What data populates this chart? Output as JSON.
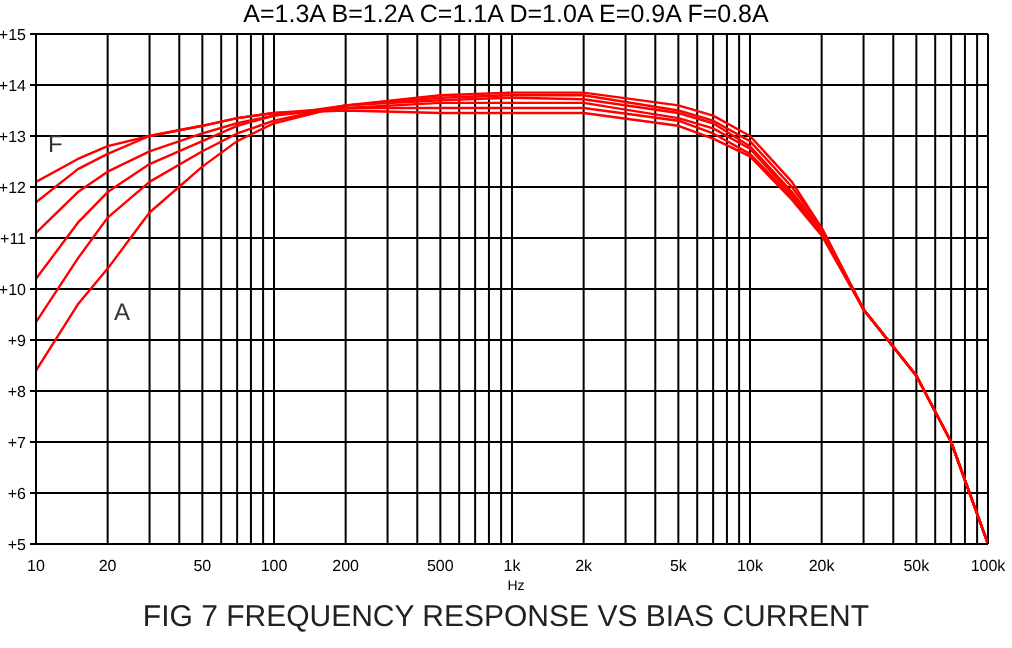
{
  "chart_data": {
    "type": "line",
    "title": "FIG 7  FREQUENCY RESPONSE VS BIAS CURRENT",
    "subtitle": "A=1.3A  B=1.2A  C=1.1A  D=1.0A  E=0.9A  F=0.8A",
    "xlabel": "Hz",
    "log": "x",
    "grid": true,
    "x": [
      10,
      15,
      20,
      30,
      50,
      70,
      100,
      200,
      500,
      1000,
      2000,
      5000,
      7000,
      10000,
      15000,
      20000,
      30000,
      50000,
      70000,
      100000
    ],
    "series": [
      {
        "color": "#ff0000",
        "values": [
          8.4,
          9.7,
          10.4,
          11.5,
          12.4,
          12.9,
          13.25,
          13.6,
          13.8,
          13.85,
          13.85,
          13.6,
          13.4,
          13.0,
          12.1,
          11.2,
          9.6,
          8.3,
          7.0,
          5.0
        ]
      },
      {
        "color": "#ff0000",
        "values": [
          9.35,
          10.6,
          11.4,
          12.1,
          12.7,
          13.05,
          13.3,
          13.6,
          13.75,
          13.8,
          13.8,
          13.5,
          13.3,
          12.9,
          12.0,
          11.2,
          9.6,
          8.3,
          7.0,
          5.0
        ]
      },
      {
        "color": "#ff0000",
        "values": [
          10.2,
          11.3,
          11.9,
          12.45,
          12.9,
          13.2,
          13.4,
          13.6,
          13.7,
          13.75,
          13.72,
          13.45,
          13.25,
          12.8,
          11.9,
          11.15,
          9.6,
          8.3,
          7.0,
          5.0
        ]
      },
      {
        "color": "#ff0000",
        "values": [
          11.1,
          11.9,
          12.3,
          12.7,
          13.05,
          13.25,
          13.4,
          13.55,
          13.65,
          13.65,
          13.65,
          13.35,
          13.15,
          12.75,
          11.85,
          11.1,
          9.6,
          8.3,
          7.0,
          5.0
        ]
      },
      {
        "color": "#ff0000",
        "values": [
          11.7,
          12.35,
          12.65,
          13.0,
          13.2,
          13.35,
          13.45,
          13.55,
          13.55,
          13.55,
          13.55,
          13.3,
          13.05,
          12.65,
          11.8,
          11.1,
          9.6,
          8.3,
          7.0,
          5.0
        ]
      },
      {
        "color": "#ff0000",
        "values": [
          12.1,
          12.55,
          12.8,
          13.0,
          13.2,
          13.35,
          13.45,
          13.5,
          13.45,
          13.45,
          13.45,
          13.2,
          12.95,
          12.6,
          11.75,
          11.05,
          9.6,
          8.3,
          7.0,
          5.0
        ]
      }
    ],
    "annotations": [
      "F",
      "A"
    ],
    "xlim": [
      10,
      100000
    ],
    "xticks": [
      10,
      20,
      {
        "value": 30,
        "label": null
      },
      {
        "value": 40,
        "label": null
      },
      50,
      {
        "value": 60,
        "label": null
      },
      {
        "value": 70,
        "label": null
      },
      {
        "value": 80,
        "label": null
      },
      {
        "value": 90,
        "label": null
      },
      100,
      200,
      {
        "value": 300,
        "label": null
      },
      {
        "value": 400,
        "label": null
      },
      500,
      {
        "value": 600,
        "label": null
      },
      {
        "value": 700,
        "label": null
      },
      {
        "value": 800,
        "label": null
      },
      {
        "value": 900,
        "label": null
      },
      {
        "value": 1000,
        "label": "1k"
      },
      {
        "value": 2000,
        "label": "2k"
      },
      {
        "value": 3000,
        "label": null
      },
      {
        "value": 4000,
        "label": null
      },
      {
        "value": 5000,
        "label": "5k"
      },
      {
        "value": 6000,
        "label": null
      },
      {
        "value": 7000,
        "label": null
      },
      {
        "value": 8000,
        "label": null
      },
      {
        "value": 9000,
        "label": null
      },
      {
        "value": 10000,
        "label": "10k"
      },
      {
        "value": 20000,
        "label": "20k"
      },
      {
        "value": 30000,
        "label": null
      },
      {
        "value": 40000,
        "label": null
      },
      {
        "value": 50000,
        "label": "50k"
      },
      {
        "value": 60000,
        "label": null
      },
      {
        "value": 70000,
        "label": null
      },
      {
        "value": 80000,
        "label": null
      },
      {
        "value": 90000,
        "label": null
      },
      {
        "value": 100000,
        "label": "100k"
      }
    ],
    "ylim": [
      5,
      15
    ],
    "yticks": [
      {
        "value": 5,
        "label": "+5"
      },
      {
        "value": 6,
        "label": "+6"
      },
      {
        "value": 7,
        "label": "+7"
      },
      {
        "value": 8,
        "label": "+8"
      },
      {
        "value": 9,
        "label": "+9"
      },
      {
        "value": 10,
        "label": "+10"
      },
      {
        "value": 11,
        "label": "+11"
      },
      {
        "value": 12,
        "label": "+12"
      },
      {
        "value": 13,
        "label": "+13"
      },
      {
        "value": 14,
        "label": "+14"
      },
      {
        "value": 15,
        "label": "+15"
      }
    ]
  }
}
